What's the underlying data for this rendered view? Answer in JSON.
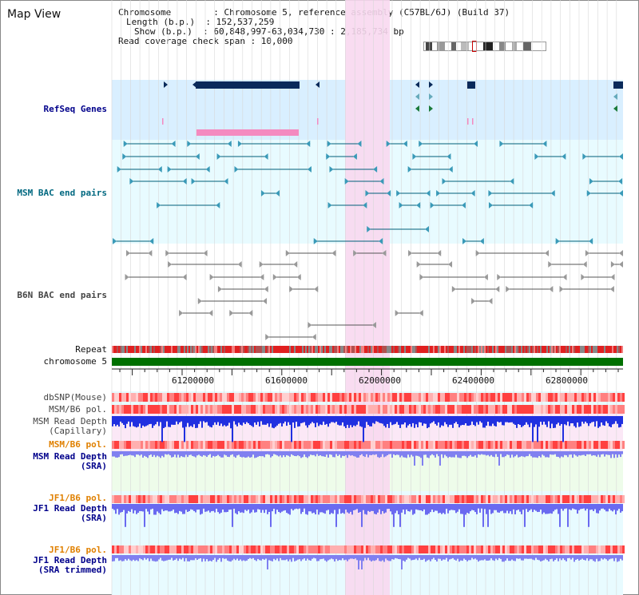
{
  "title": "Map View",
  "header": {
    "line1": "Chromosome        : Chromosome 5, reference assembly (C57BL/6J) (Build 37)",
    "line2": "Length (b.p.)  : 152,537,259",
    "line3": "Show (b.p.)  : 60,848,997-63,034,730 : 2,185,734 bp",
    "line4": "Read coverage check span : 10,000"
  },
  "tracks": {
    "refseq": "RefSeq Genes",
    "msm_bac": "MSM BAC end pairs",
    "b6n_bac": "B6N BAC end pairs",
    "repeat": "Repeat",
    "chromosome": "chromosome 5",
    "dbsnp": "dbSNP(Mouse)",
    "msm_b6_pol": "MSM/B6 pol.",
    "msm_read_depth_cap_1": "MSM Read Depth",
    "msm_read_depth_cap_2": "(Capillary)",
    "msm_b6_pol_sra": "MSM/B6 pol.",
    "msm_read_depth_sra_1": "MSM Read Depth",
    "msm_read_depth_sra_2": "(SRA)",
    "jf1_b6_pol": "JF1/B6 pol.",
    "jf1_read_depth_1": "JF1 Read Depth",
    "jf1_read_depth_2": "(SRA)",
    "jf1_b6_pol_trim": "JF1/B6 pol.",
    "jf1_read_depth_trim_1": "JF1 Read Depth",
    "jf1_read_depth_trim_2": "(SRA trimmed)"
  },
  "axis": {
    "ticks": [
      "61200000",
      "61600000",
      "62000000",
      "62400000",
      "62800000"
    ]
  },
  "colors": {
    "refseq_bg": "#d9efff",
    "bac_bg": "#e8fbff",
    "highlight": "#f8d8f0",
    "msm_color": "#005f7a",
    "b6n_color": "#555555",
    "chrom_green": "#007000",
    "label_blue": "#00008b",
    "label_teal": "#006880",
    "label_orange": "#e08000"
  }
}
